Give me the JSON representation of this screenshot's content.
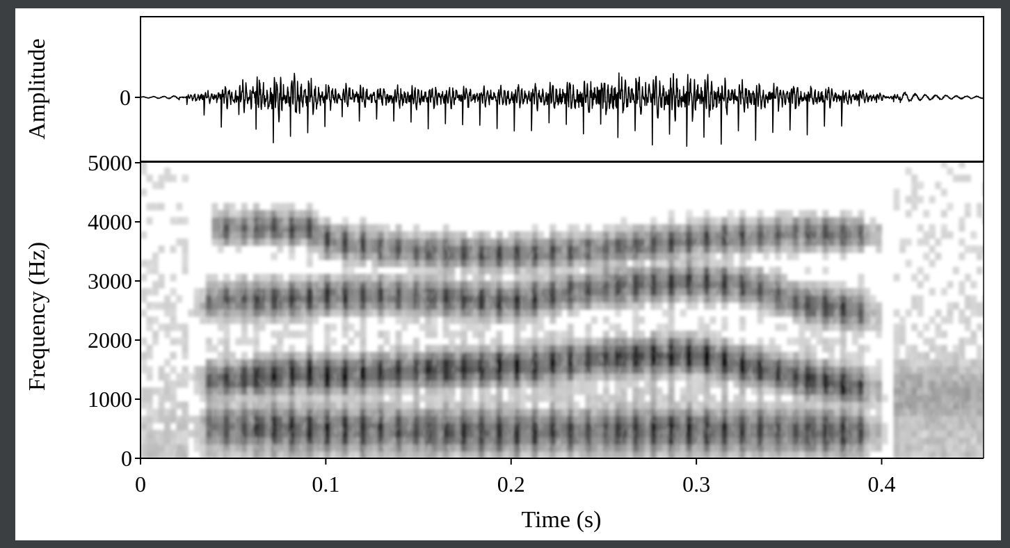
{
  "chart_data": [
    {
      "type": "line",
      "panel": "waveform",
      "title": "",
      "ylabel": "Amplitude",
      "xlabel": "",
      "yticks": [
        {
          "value": 0,
          "label": "0"
        }
      ],
      "zero_line": true,
      "xlim": [
        0,
        0.455
      ],
      "ylim": [
        -1,
        1
      ],
      "envelope": {
        "time": [
          0,
          0.02,
          0.025,
          0.03,
          0.04,
          0.05,
          0.06,
          0.07,
          0.08,
          0.09,
          0.1,
          0.12,
          0.15,
          0.18,
          0.2,
          0.22,
          0.25,
          0.28,
          0.3,
          0.32,
          0.35,
          0.38,
          0.39,
          0.4,
          0.41,
          0.42,
          0.43,
          0.44,
          0.455
        ],
        "amplitude": [
          0.01,
          0.03,
          0.12,
          0.25,
          0.35,
          0.55,
          0.8,
          0.98,
          1.0,
          0.85,
          0.55,
          0.5,
          0.5,
          0.48,
          0.48,
          0.6,
          0.92,
          0.98,
          0.95,
          0.7,
          0.6,
          0.4,
          0.32,
          0.15,
          0.1,
          0.06,
          0.05,
          0.03,
          0.02
        ]
      },
      "series": [
        {
          "values_description": ""
        }
      ]
    },
    {
      "type": "heatmap",
      "panel": "spectrogram",
      "title": "",
      "xlabel": "Time (s)",
      "ylabel": "Frequency (Hz)",
      "xlim": [
        0,
        0.455
      ],
      "ylim": [
        0,
        5000
      ],
      "xticks": [
        {
          "value": 0,
          "label": "0"
        },
        {
          "value": 0.1,
          "label": "0.1"
        },
        {
          "value": 0.2,
          "label": "0.2"
        },
        {
          "value": 0.3,
          "label": "0.3"
        },
        {
          "value": 0.4,
          "label": "0.4"
        }
      ],
      "yticks": [
        {
          "value": 0,
          "label": "0"
        },
        {
          "value": 1000,
          "label": "1000"
        },
        {
          "value": 2000,
          "label": "2000"
        },
        {
          "value": 3000,
          "label": "3000"
        },
        {
          "value": 4000,
          "label": "4000"
        },
        {
          "value": 5000,
          "label": "5000"
        }
      ],
      "colormap": "grayscale (white = low energy, black = high energy)",
      "voicing": {
        "start_s": 0.025,
        "end_s": 0.405,
        "pitch_period_s": 0.0093
      },
      "formants": [
        {
          "name": "F1",
          "points": [
            [
              0.025,
              550
            ],
            [
              0.1,
              500
            ],
            [
              0.2,
              450
            ],
            [
              0.3,
              480
            ],
            [
              0.4,
              450
            ]
          ]
        },
        {
          "name": "F2",
          "points": [
            [
              0.025,
              1300
            ],
            [
              0.05,
              1350
            ],
            [
              0.09,
              1450
            ],
            [
              0.1,
              1400
            ],
            [
              0.15,
              1500
            ],
            [
              0.2,
              1550
            ],
            [
              0.25,
              1700
            ],
            [
              0.3,
              1750
            ],
            [
              0.33,
              1550
            ],
            [
              0.36,
              1350
            ],
            [
              0.4,
              1150
            ]
          ]
        },
        {
          "name": "F3",
          "points": [
            [
              0.025,
              2600
            ],
            [
              0.05,
              2700
            ],
            [
              0.09,
              2700
            ],
            [
              0.1,
              2750
            ],
            [
              0.15,
              2750
            ],
            [
              0.2,
              2650
            ],
            [
              0.25,
              2900
            ],
            [
              0.3,
              3000
            ],
            [
              0.33,
              2900
            ],
            [
              0.36,
              2600
            ],
            [
              0.4,
              2450
            ]
          ]
        },
        {
          "name": "F4",
          "points": [
            [
              0.05,
              3900
            ],
            [
              0.09,
              3900
            ],
            [
              0.1,
              3700
            ],
            [
              0.15,
              3500
            ],
            [
              0.2,
              3450
            ],
            [
              0.25,
              3550
            ],
            [
              0.3,
              3700
            ],
            [
              0.34,
              3800
            ],
            [
              0.37,
              3800
            ],
            [
              0.39,
              3800
            ]
          ]
        }
      ]
    }
  ]
}
